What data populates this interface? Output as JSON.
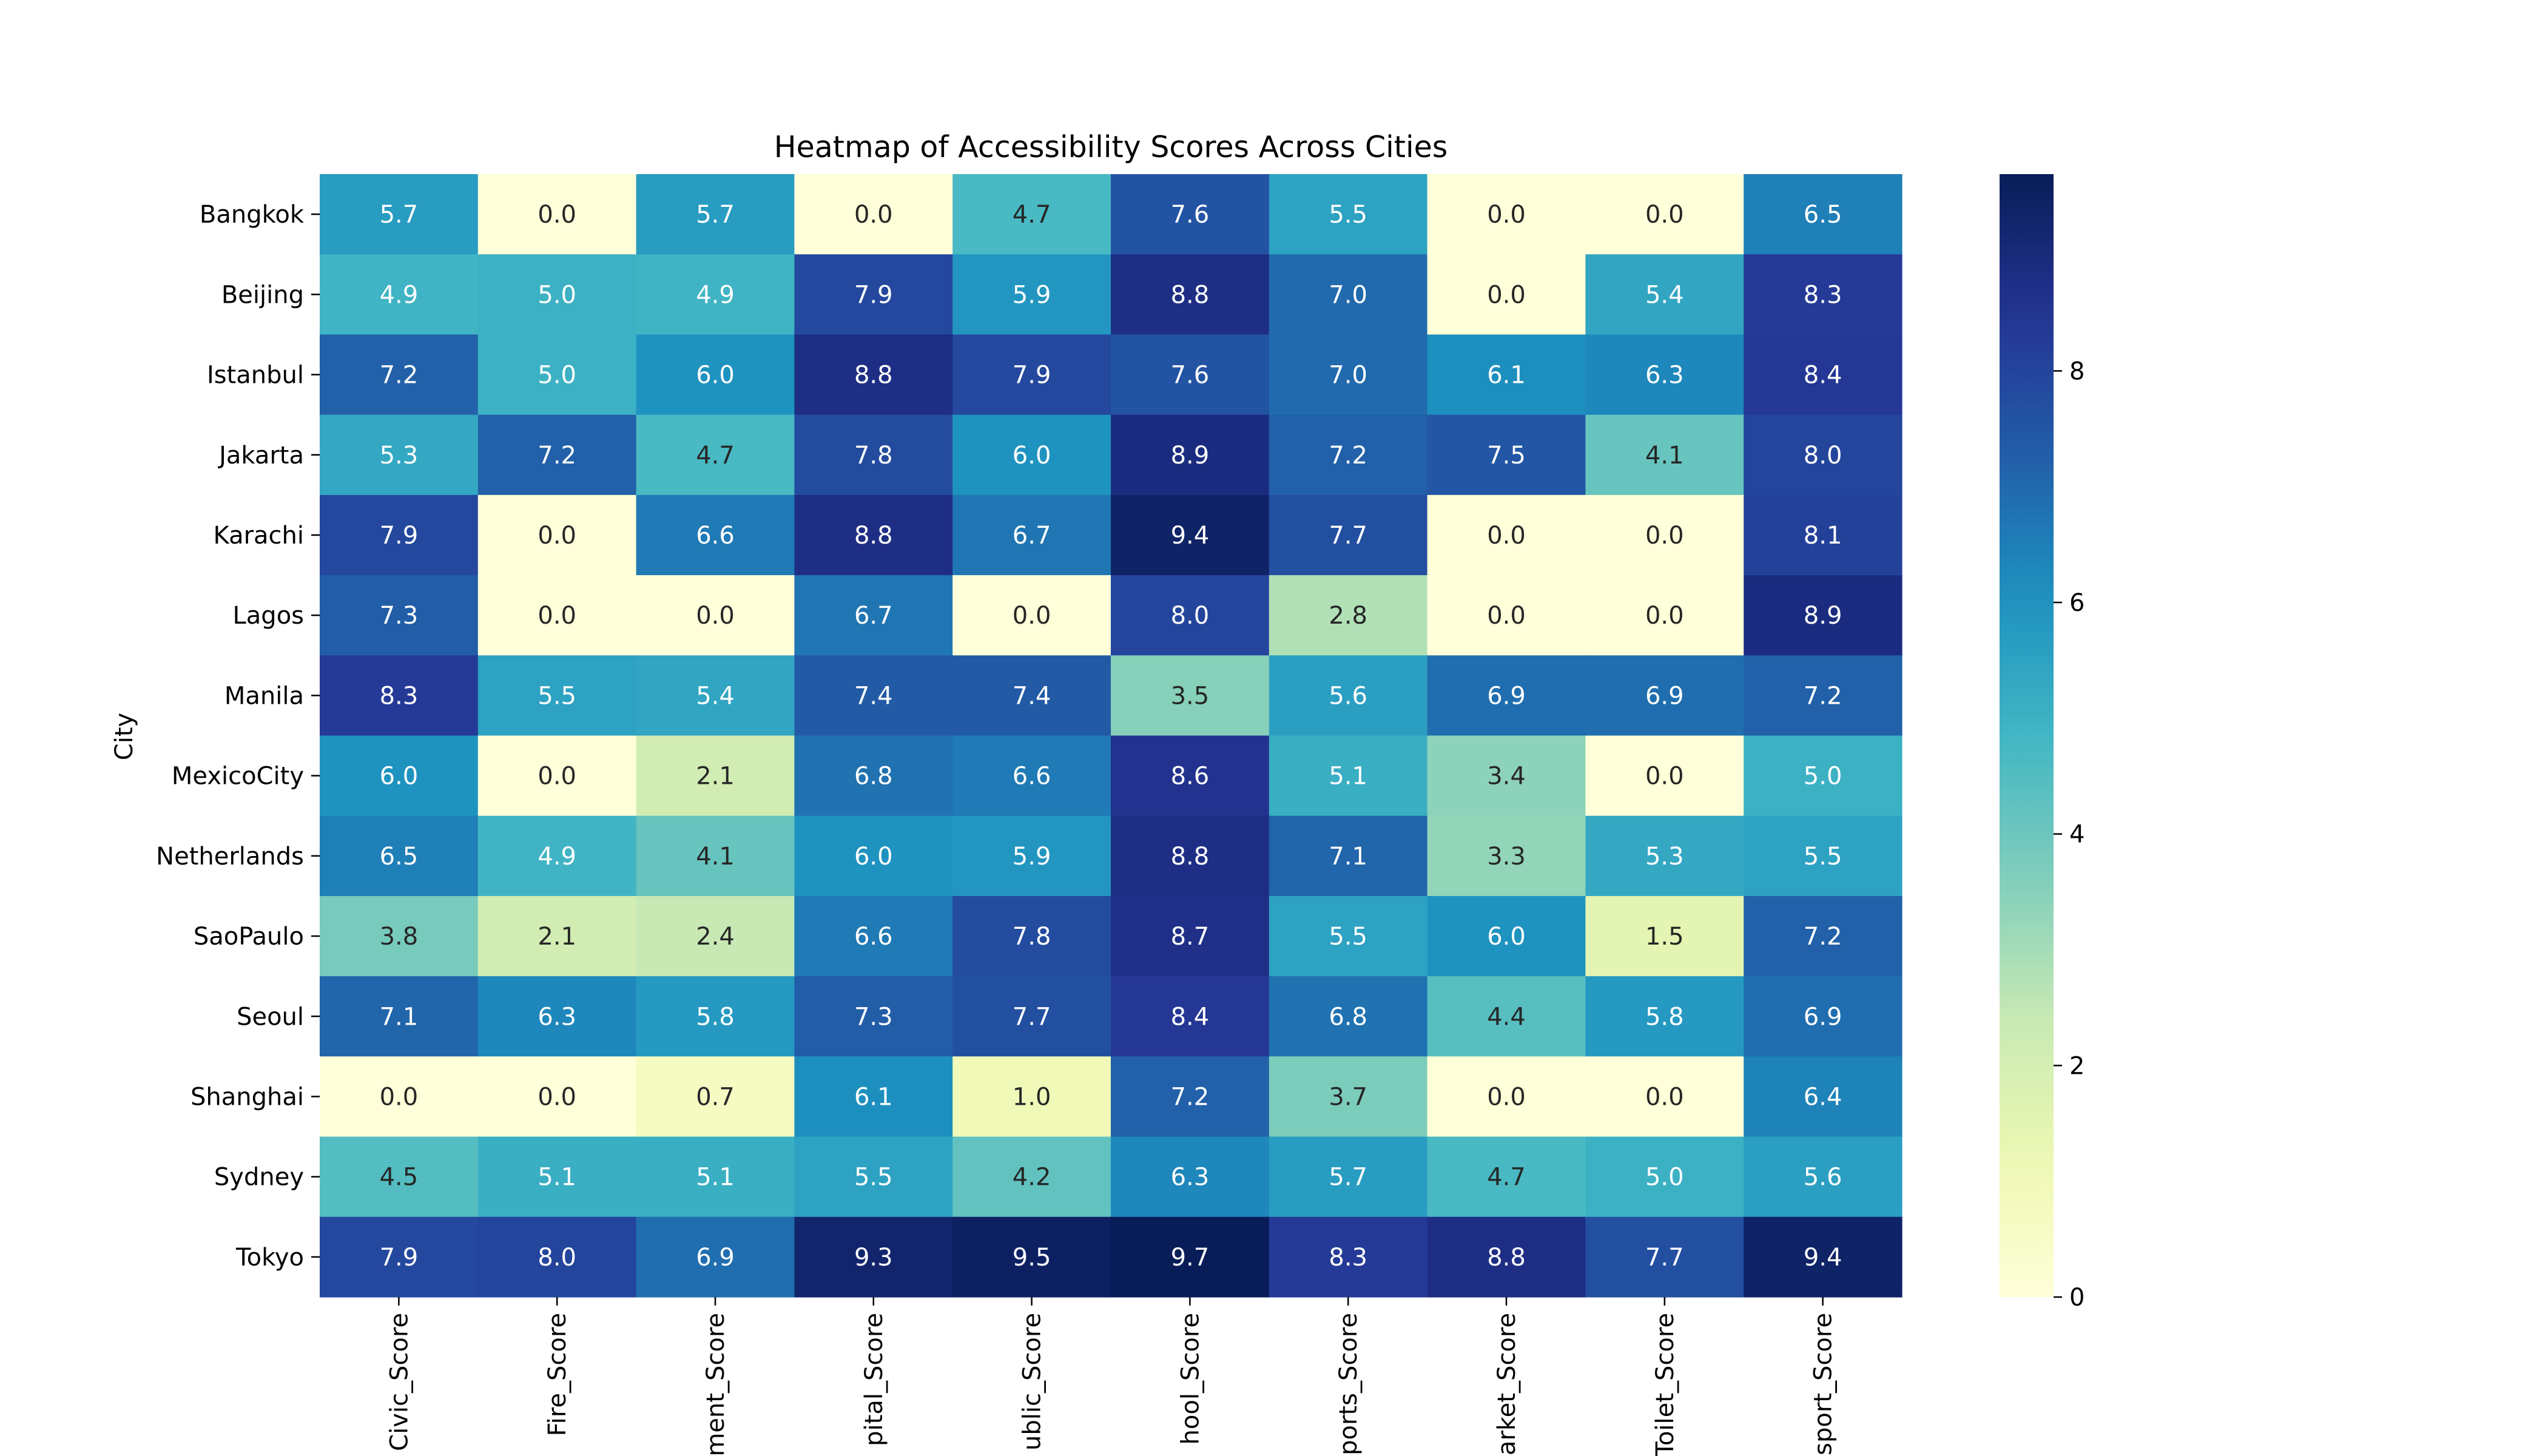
{
  "chart_data": {
    "type": "heatmap",
    "title": "Heatmap of Accessibility Scores Across Cities",
    "xlabel": "",
    "ylabel": "City",
    "columns": [
      "Civic_Score",
      "Fire_Score",
      "ment_Score",
      "pital_Score",
      "ublic_Score",
      "hool_Score",
      "ports_Score",
      "arket_Score",
      "Toilet_Score",
      "sport_Score"
    ],
    "rows": [
      "Bangkok",
      "Beijing",
      "Istanbul",
      "Jakarta",
      "Karachi",
      "Lagos",
      "Manila",
      "MexicoCity",
      "Netherlands",
      "SaoPaulo",
      "Seoul",
      "Shanghai",
      "Sydney",
      "Tokyo"
    ],
    "values": [
      [
        5.7,
        0.0,
        5.7,
        0.0,
        4.7,
        7.6,
        5.5,
        0.0,
        0.0,
        6.5
      ],
      [
        4.9,
        5.0,
        4.9,
        7.9,
        5.9,
        8.8,
        7.0,
        0.0,
        5.4,
        8.3
      ],
      [
        7.2,
        5.0,
        6.0,
        8.8,
        7.9,
        7.6,
        7.0,
        6.1,
        6.3,
        8.4
      ],
      [
        5.3,
        7.2,
        4.7,
        7.8,
        6.0,
        8.9,
        7.2,
        7.5,
        4.1,
        8.0
      ],
      [
        7.9,
        0.0,
        6.6,
        8.8,
        6.7,
        9.4,
        7.7,
        0.0,
        0.0,
        8.1
      ],
      [
        7.3,
        0.0,
        0.0,
        6.7,
        0.0,
        8.0,
        2.8,
        0.0,
        0.0,
        8.9
      ],
      [
        8.3,
        5.5,
        5.4,
        7.4,
        7.4,
        3.5,
        5.6,
        6.9,
        6.9,
        7.2
      ],
      [
        6.0,
        0.0,
        2.1,
        6.8,
        6.6,
        8.6,
        5.1,
        3.4,
        0.0,
        5.0
      ],
      [
        6.5,
        4.9,
        4.1,
        6.0,
        5.9,
        8.8,
        7.1,
        3.3,
        5.3,
        5.5
      ],
      [
        3.8,
        2.1,
        2.4,
        6.6,
        7.8,
        8.7,
        5.5,
        6.0,
        1.5,
        7.2
      ],
      [
        7.1,
        6.3,
        5.8,
        7.3,
        7.7,
        8.4,
        6.8,
        4.4,
        5.8,
        6.9
      ],
      [
        0.0,
        0.0,
        0.7,
        6.1,
        1.0,
        7.2,
        3.7,
        0.0,
        0.0,
        6.4
      ],
      [
        4.5,
        5.1,
        5.1,
        5.5,
        4.2,
        6.3,
        5.7,
        4.7,
        5.0,
        5.6
      ],
      [
        7.9,
        8.0,
        6.9,
        9.3,
        9.5,
        9.7,
        8.3,
        8.8,
        7.7,
        9.4
      ]
    ],
    "colormap": "YlGnBu",
    "vmin": 0,
    "vmax": 9.7,
    "colorbar_ticks": [
      0,
      2,
      4,
      6,
      8
    ],
    "legend_placement": "right (colorbar)",
    "grid": false
  }
}
